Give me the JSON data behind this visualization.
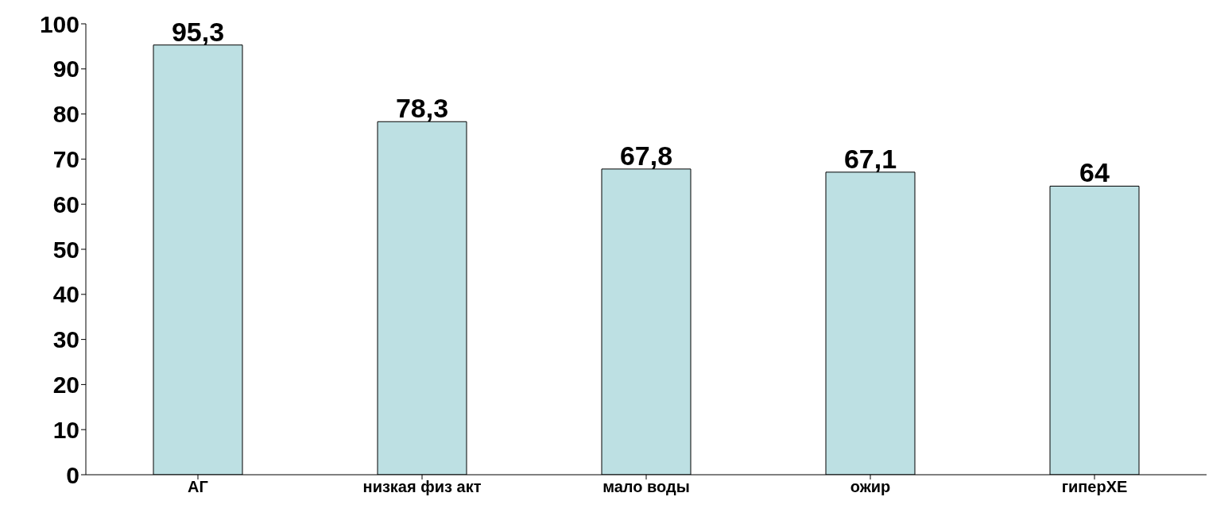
{
  "chart_data": {
    "type": "bar",
    "categories": [
      "АГ",
      "низкая физ акт",
      "мало воды",
      "ожир",
      "гиперХЕ"
    ],
    "values": [
      95.3,
      78.3,
      67.8,
      67.1,
      64
    ],
    "value_labels": [
      "95,3",
      "78,3",
      "67,8",
      "67,1",
      "64"
    ],
    "color": "#bde0e3",
    "ylim": [
      0,
      100
    ],
    "yticks": [
      0,
      10,
      20,
      30,
      40,
      50,
      60,
      70,
      80,
      90,
      100
    ],
    "grid": false,
    "legend": false
  }
}
